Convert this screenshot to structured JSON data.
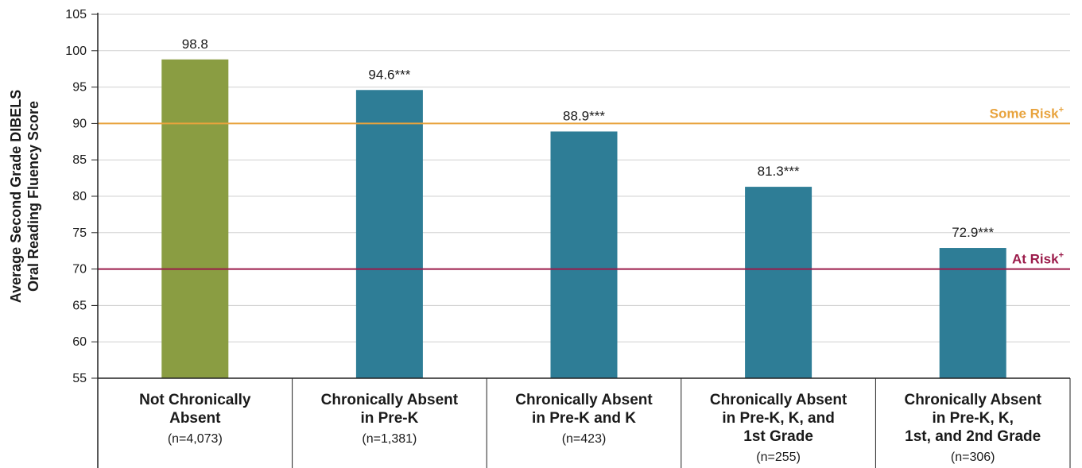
{
  "chart_data": {
    "type": "bar",
    "ylabel": "Average Second Grade DIBELS Oral Reading Fluency Score",
    "ylabel_lines": [
      "Average Second Grade DIBELS",
      "Oral Reading Fluency Score"
    ],
    "ylim": [
      55,
      105
    ],
    "yticks": [
      55,
      60,
      65,
      70,
      75,
      80,
      85,
      90,
      95,
      100,
      105
    ],
    "grid": true,
    "categories": [
      "Not Chronically Absent (n=4,073)",
      "Chronically Absent in Pre-K (n=1,381)",
      "Chronically Absent in Pre-K and K (n=423)",
      "Chronically Absent in Pre-K, K, and 1st Grade (n=255)",
      "Chronically Absent in Pre-K, K, 1st, and 2nd Grade (n=306)"
    ],
    "category_lines": [
      [
        "Not Chronically",
        "Absent"
      ],
      [
        "Chronically Absent",
        "in Pre-K"
      ],
      [
        "Chronically Absent",
        "in Pre-K and K"
      ],
      [
        "Chronically Absent",
        "in Pre-K, K, and",
        "1st Grade"
      ],
      [
        "Chronically Absent",
        "in Pre-K, K,",
        "1st, and 2nd Grade"
      ]
    ],
    "category_n": [
      "(n=4,073)",
      "(n=1,381)",
      "(n=423)",
      "(n=255)",
      "(n=306)"
    ],
    "values": [
      98.8,
      94.6,
      88.9,
      81.3,
      72.9
    ],
    "value_labels": [
      "98.8",
      "94.6***",
      "88.9***",
      "81.3***",
      "72.9***"
    ],
    "bar_colors": [
      "#8a9d42",
      "#2e7d96",
      "#2e7d96",
      "#2e7d96",
      "#2e7d96"
    ],
    "reference_lines": [
      {
        "label": "Some Risk",
        "superscript": "+",
        "value": 90,
        "color": "#e8a33d"
      },
      {
        "label": "At Risk",
        "superscript": "+",
        "value": 70,
        "color": "#9b1b4a"
      }
    ],
    "colors": {
      "grid": "#d0d0d0",
      "axis": "#222222"
    }
  }
}
